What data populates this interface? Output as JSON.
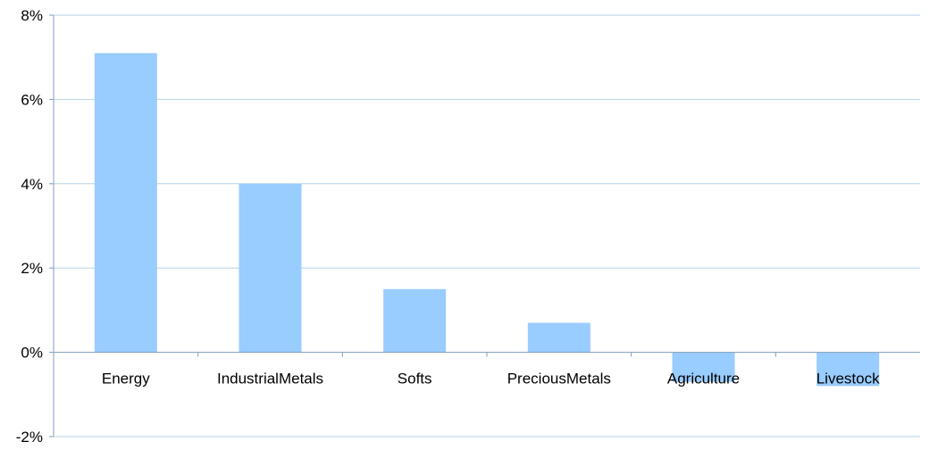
{
  "chart_data": {
    "type": "bar",
    "categories": [
      "Energy",
      "IndustrialMetals",
      "Softs",
      "PreciousMetals",
      "Agriculture",
      "Livestock"
    ],
    "values": [
      7.1,
      4.0,
      1.5,
      0.7,
      -0.7,
      -0.8
    ],
    "ylim": [
      -2,
      8
    ],
    "yticks": [
      -2,
      0,
      2,
      4,
      6,
      8
    ],
    "ytick_labels": [
      "-2%",
      "0%",
      "2%",
      "4%",
      "6%",
      "8%"
    ],
    "grid": true,
    "legend": false,
    "title": "",
    "xlabel": "",
    "ylabel": ""
  },
  "colors": {
    "bar": "#99ccff",
    "grid": "#b7d2e8",
    "axis": "#7f9db9"
  }
}
